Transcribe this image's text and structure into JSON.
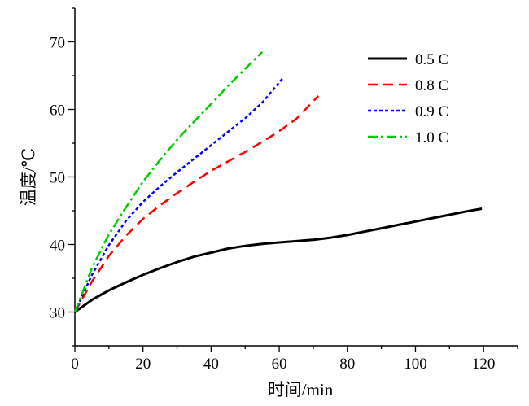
{
  "chart_data": {
    "type": "line",
    "xlabel": "时间/min",
    "ylabel": "温度/℃",
    "xlim": [
      0,
      130
    ],
    "ylim": [
      25,
      75
    ],
    "xticks": [
      0,
      20,
      40,
      60,
      80,
      100,
      120
    ],
    "yticks": [
      30,
      40,
      50,
      60,
      70
    ],
    "grid": false,
    "legend_position": "top-right",
    "series": [
      {
        "name": "0.5 C",
        "color": "#000000",
        "dash": "solid",
        "x": [
          0,
          5,
          10,
          15,
          20,
          25,
          30,
          35,
          40,
          45,
          50,
          55,
          60,
          65,
          70,
          75,
          80,
          85,
          90,
          95,
          100,
          105,
          110,
          115,
          119.5
        ],
        "y": [
          30.0,
          31.8,
          33.2,
          34.4,
          35.5,
          36.5,
          37.4,
          38.2,
          38.8,
          39.4,
          39.8,
          40.1,
          40.3,
          40.5,
          40.7,
          41.0,
          41.4,
          41.9,
          42.4,
          42.9,
          43.4,
          43.9,
          44.4,
          44.9,
          45.3
        ]
      },
      {
        "name": "0.8 C",
        "color": "#ff0000",
        "dash": "dashed",
        "x": [
          0,
          5,
          10,
          15,
          20,
          25,
          30,
          35,
          40,
          45,
          50,
          55,
          60,
          65,
          70,
          71.5
        ],
        "y": [
          30.0,
          34.5,
          38.3,
          41.3,
          43.8,
          45.8,
          47.6,
          49.3,
          50.9,
          52.3,
          53.7,
          55.2,
          56.8,
          58.6,
          61.2,
          62.0
        ]
      },
      {
        "name": "0.9 C",
        "color": "#0000ff",
        "dash": "dotted",
        "x": [
          0,
          5,
          10,
          15,
          20,
          25,
          30,
          35,
          40,
          45,
          50,
          55,
          61
        ],
        "y": [
          30.0,
          35.5,
          39.9,
          43.5,
          46.3,
          48.6,
          50.7,
          52.7,
          54.7,
          56.7,
          58.7,
          61.0,
          64.6
        ]
      },
      {
        "name": "1.0 C",
        "color": "#00cc00",
        "dash": "dashdot",
        "x": [
          0,
          5,
          10,
          15,
          20,
          25,
          30,
          35,
          40,
          45,
          50,
          55
        ],
        "y": [
          30.0,
          36.5,
          41.5,
          45.5,
          49.3,
          52.5,
          55.5,
          58.2,
          60.8,
          63.5,
          66.0,
          68.5
        ]
      }
    ]
  }
}
